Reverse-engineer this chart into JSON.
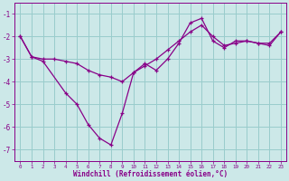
{
  "xlabel": "Windchill (Refroidissement éolien,°C)",
  "bg_color": "#cce8e8",
  "line_color": "#880088",
  "grid_color": "#99cccc",
  "ylim": [
    -7.5,
    -0.5
  ],
  "xlim": [
    -0.5,
    23.5
  ],
  "yticks": [
    -7,
    -6,
    -5,
    -4,
    -3,
    -2,
    -1
  ],
  "xticks": [
    0,
    1,
    2,
    3,
    4,
    5,
    6,
    7,
    8,
    9,
    10,
    11,
    12,
    13,
    14,
    15,
    16,
    17,
    18,
    19,
    20,
    21,
    22,
    23
  ],
  "line1_x": [
    0,
    1,
    2,
    3,
    4,
    5,
    6,
    7,
    8,
    9,
    10,
    11,
    12,
    13,
    14,
    15,
    16,
    17,
    18,
    19,
    20,
    21,
    22,
    23
  ],
  "line1_y": [
    -2.0,
    -2.9,
    -3.0,
    -3.0,
    -3.1,
    -3.2,
    -3.5,
    -3.7,
    -3.8,
    -4.0,
    -3.6,
    -3.3,
    -3.0,
    -2.6,
    -2.2,
    -1.8,
    -1.5,
    -2.0,
    -2.4,
    -2.3,
    -2.2,
    -2.3,
    -2.3,
    -1.8
  ],
  "line2_x": [
    0,
    1,
    2,
    4,
    5,
    6,
    7,
    8,
    9,
    10,
    11,
    12,
    13,
    14,
    15,
    16,
    17,
    18,
    19,
    20,
    21,
    22,
    23
  ],
  "line2_y": [
    -2.0,
    -2.9,
    -3.1,
    -4.5,
    -5.0,
    -5.9,
    -6.5,
    -6.8,
    -5.4,
    -3.6,
    -3.2,
    -3.5,
    -3.0,
    -2.3,
    -1.4,
    -1.2,
    -2.2,
    -2.5,
    -2.2,
    -2.2,
    -2.3,
    -2.4,
    -1.8
  ]
}
